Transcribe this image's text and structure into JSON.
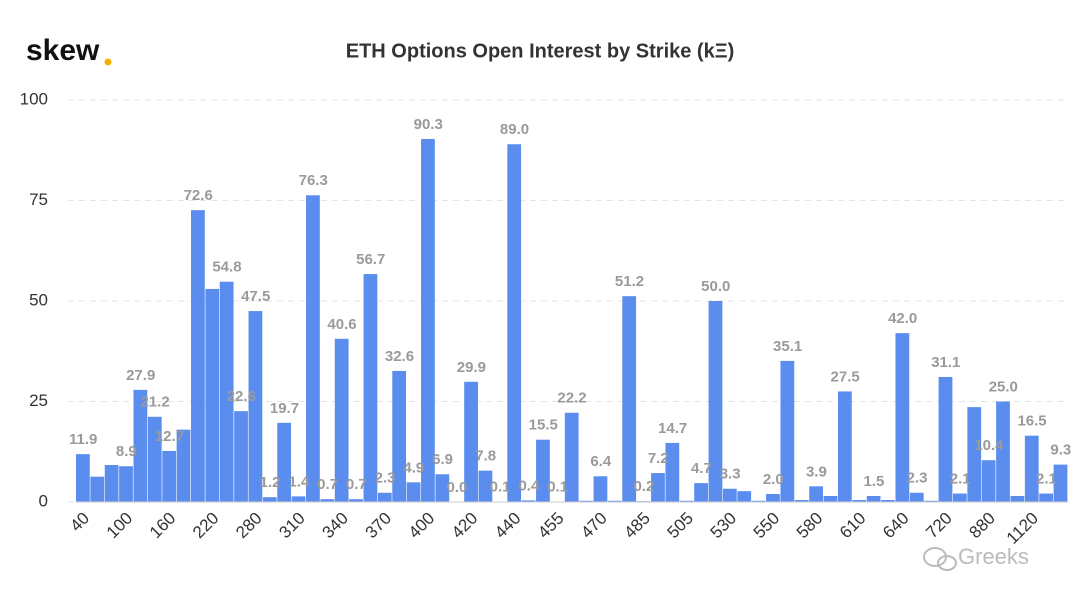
{
  "chart_data": {
    "type": "bar",
    "logo": "skew",
    "title": "ETH Options Open Interest by Strike (kΞ)",
    "watermark": "Greeks",
    "color": "#5b8def",
    "categories": [
      "40",
      null,
      null,
      "100",
      null,
      null,
      "160",
      null,
      null,
      "220",
      null,
      null,
      "280",
      null,
      null,
      "310",
      null,
      null,
      "340",
      null,
      null,
      "370",
      null,
      null,
      "400",
      null,
      null,
      "420",
      null,
      null,
      "440",
      null,
      null,
      "455",
      null,
      null,
      "470",
      null,
      null,
      "485",
      null,
      null,
      "505",
      null,
      null,
      "530",
      null,
      null,
      "550",
      null,
      null,
      "580",
      null,
      null,
      "610",
      null,
      null,
      "640",
      null,
      null,
      "720",
      null,
      null,
      "880",
      null,
      null,
      "1120",
      null,
      null
    ],
    "values": [
      11.9,
      6.3,
      9.2,
      8.9,
      27.9,
      21.2,
      12.7,
      18.0,
      72.6,
      53.0,
      54.8,
      22.6,
      47.5,
      1.2,
      19.7,
      1.4,
      76.3,
      0.7,
      40.6,
      0.7,
      56.7,
      2.3,
      32.6,
      4.9,
      90.3,
      6.9,
      0.0,
      29.9,
      7.8,
      0.1,
      89.0,
      0.4,
      15.5,
      0.1,
      22.2,
      0.3,
      6.4,
      0.3,
      51.2,
      0.2,
      7.2,
      14.7,
      0.3,
      4.7,
      50.0,
      3.3,
      2.7,
      0.3,
      2.0,
      35.1,
      0.5,
      3.9,
      1.5,
      27.5,
      0.5,
      1.5,
      0.5,
      42.0,
      2.3,
      0.3,
      31.1,
      2.1,
      23.6,
      10.4,
      25.0,
      1.5,
      16.5,
      2.1,
      9.3
    ],
    "value_labels": [
      "11.9",
      null,
      null,
      "8.9",
      "27.9",
      "21.2",
      "12.7",
      null,
      "72.6",
      null,
      "54.8",
      "22.6",
      "47.5",
      "1.2",
      "19.7",
      "1.4",
      "76.3",
      "0.7",
      "40.6",
      "0.7",
      "56.7",
      "2.3",
      "32.6",
      "4.9",
      "90.3",
      "6.9",
      "0.0",
      "29.9",
      "7.8",
      "0.1",
      "89.0",
      "0.4",
      "15.5",
      "0.1",
      "22.2",
      null,
      "6.4",
      null,
      "51.2",
      "0.2",
      "7.2",
      "14.7",
      null,
      "4.7",
      "50.0",
      "3.3",
      null,
      null,
      "2.0",
      "35.1",
      null,
      "3.9",
      null,
      "27.5",
      null,
      "1.5",
      null,
      "42.0",
      "2.3",
      null,
      "31.1",
      "2.1",
      null,
      "10.4",
      "25.0",
      null,
      "16.5",
      "2.1",
      "9.3"
    ],
    "ylim": [
      0,
      100
    ],
    "yticks": [
      0,
      25,
      50,
      75,
      100
    ],
    "grid": true
  }
}
